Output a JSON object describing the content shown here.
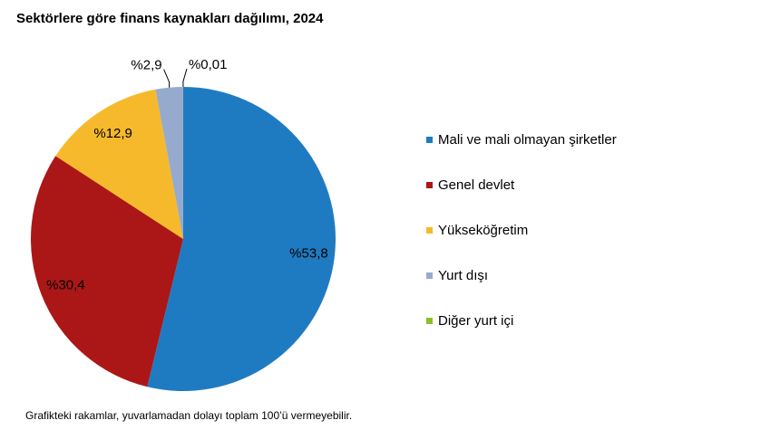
{
  "chart_data": {
    "type": "pie",
    "title": "Sektörlere göre finans kaynakları dağılımı, 2024",
    "categories": [
      "Mali ve mali olmayan şirketler",
      "Genel devlet",
      "Yükseköğretim",
      "Yurt dışı",
      "Diğer yurt içi"
    ],
    "values": [
      53.8,
      30.4,
      12.9,
      2.9,
      0.01
    ],
    "value_labels": [
      "%53,8",
      "%30,4",
      "%12,9",
      "%2,9",
      "%0,01"
    ],
    "colors": [
      "#1f7bc1",
      "#ab1717",
      "#f6b92b",
      "#95aacd",
      "#8cbf28"
    ],
    "note": "Grafikteki rakamlar, yuvarlamadan dolayı toplam 100’ü vermeyebilir."
  }
}
